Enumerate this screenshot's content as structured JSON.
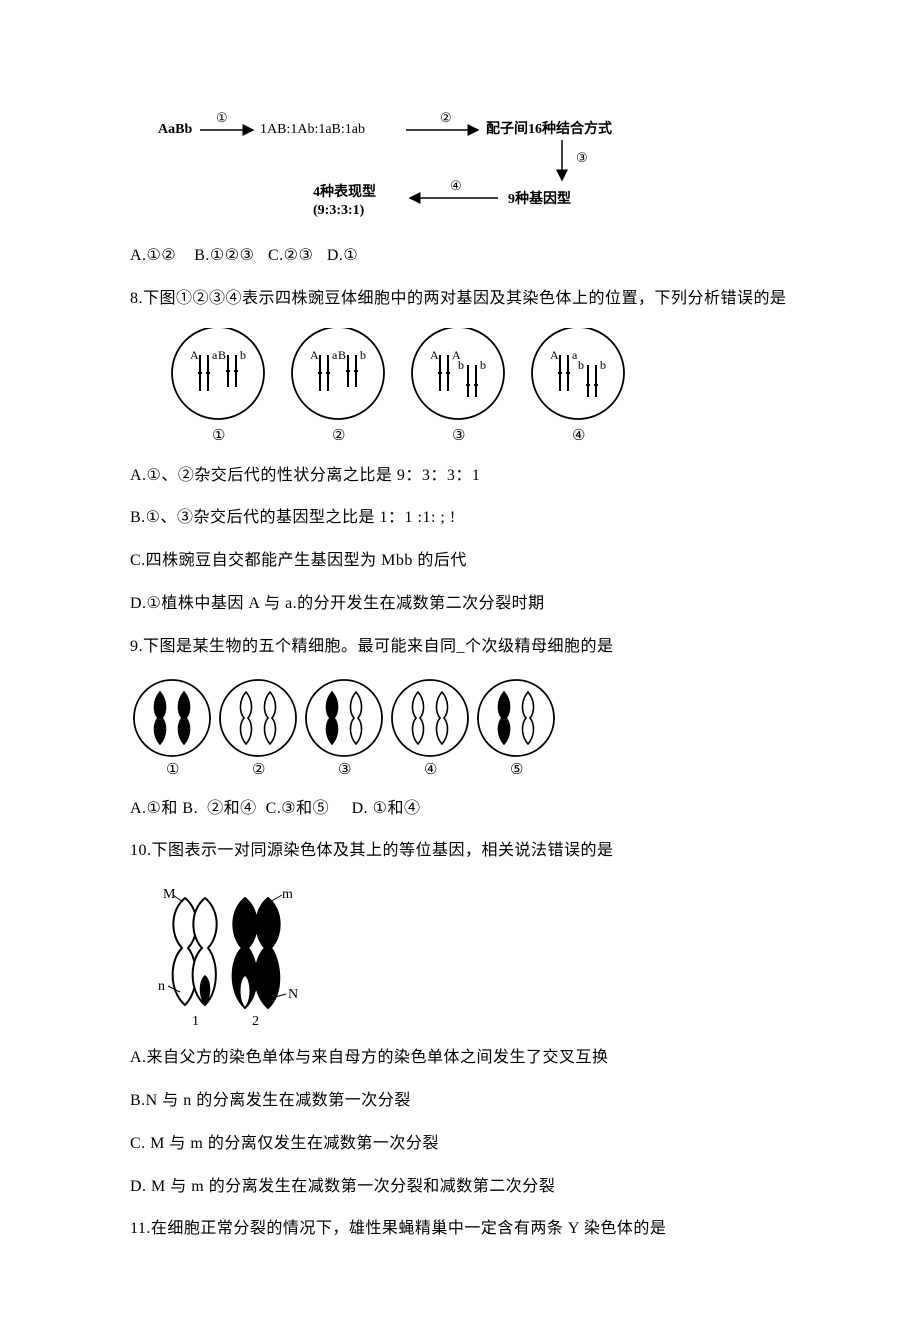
{
  "colors": {
    "text": "#000000",
    "bg": "#ffffff",
    "stroke": "#000000"
  },
  "typography": {
    "body_fontsize_pt": 12,
    "family": "SimSun"
  },
  "flow_diagram": {
    "type": "flowchart",
    "stroke": "#000000",
    "labels": {
      "src": "AaBb",
      "step1": "①",
      "mid": "1AB:1Ab:1aB:1ab",
      "step2": "②",
      "right": "配子间16种结合方式",
      "step3": "③",
      "bottom_right": "9种基因型",
      "step4": "④",
      "bottom_left_l1": "4种表现型",
      "bottom_left_l2": "(9:3:3:1)"
    }
  },
  "q7_options": {
    "A": "A.①②",
    "B": "B.①②③",
    "C": "C.②③",
    "D": "D.①"
  },
  "q8": {
    "stem": "8.下图①②③④表示四株豌豆体细胞中的两对基因及其染色体上的位置，下列分析错误的是",
    "diagram": {
      "type": "diagram",
      "stroke": "#000000",
      "cells": [
        {
          "id": "①",
          "pair1": [
            "A",
            "a"
          ],
          "pair2": [
            "B",
            "b"
          ],
          "pair2_pos": "mid"
        },
        {
          "id": "②",
          "pair1": [
            "A",
            "a"
          ],
          "pair2": [
            "B",
            "b"
          ],
          "pair2_pos": "mid"
        },
        {
          "id": "③",
          "pair1": [
            "A",
            "A"
          ],
          "pair2": [
            "b",
            "b"
          ],
          "pair2_pos": "low"
        },
        {
          "id": "④",
          "pair1": [
            "A",
            "a"
          ],
          "pair2": [
            "b",
            "b"
          ],
          "pair2_pos": "low"
        }
      ]
    },
    "A": "A.①、②杂交后代的性状分离之比是 9：3：3：1",
    "B": "B.①、③杂交后代的基因型之比是 1：1 :1: ; !",
    "C": "C.四株豌豆自交都能产生基因型为 Mbb 的后代",
    "D": "D.①植株中基因 A 与 a.的分开发生在减数第二次分裂时期"
  },
  "q9": {
    "stem": "9.下图是某生物的五个精细胞。最可能来自同_个次级精母细胞的是",
    "diagram": {
      "type": "diagram",
      "stroke": "#000000",
      "fill": "#000000",
      "cells": [
        "①",
        "②",
        "③",
        "④",
        "⑤"
      ],
      "patterns": [
        {
          "left": "filled",
          "right": "filled"
        },
        {
          "left": "outline",
          "right": "outline"
        },
        {
          "left": "filled",
          "right": "outline"
        },
        {
          "left": "outline",
          "right": "outline"
        },
        {
          "left": "filled",
          "right": "outline"
        }
      ]
    },
    "A": "A.①和 B.",
    "B": "②和④",
    "C": "C.③和⑤",
    "D": "D.   ①和④"
  },
  "q10": {
    "stem": "10.下图表示一对同源染色体及其上的等位基因，相关说法错误的是",
    "diagram": {
      "type": "diagram",
      "stroke": "#000000",
      "labels": {
        "M": "M",
        "m": "m",
        "n": "n",
        "N": "N",
        "one": "1",
        "two": "2"
      }
    },
    "A": "A.来自父方的染色单体与来自母方的染色单体之间发生了交叉互换",
    "B": "B.N 与 n 的分离发生在减数第一次分裂",
    "C": "C. M 与 m 的分离仅发生在减数第一次分裂",
    "D": "D. M 与 m 的分离发生在减数第一次分裂和减数第二次分裂"
  },
  "q11": {
    "stem": "11.在细胞正常分裂的情况下，雄性果蝇精巢中一定含有两条 Y 染色体的是"
  }
}
